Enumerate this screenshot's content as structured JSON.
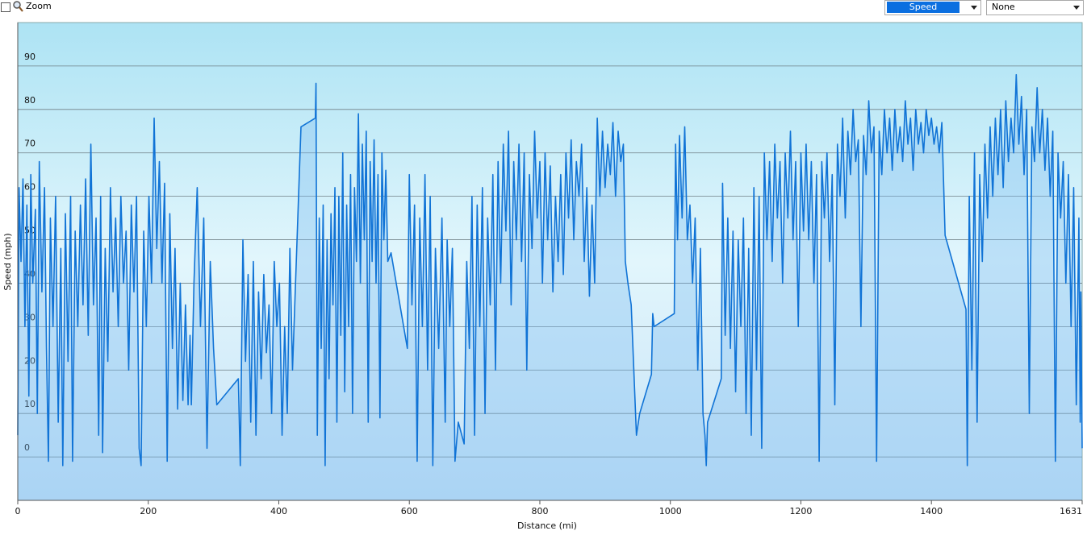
{
  "ui": {
    "zoom_label": "Zoom",
    "dropdown_metric": "Speed",
    "dropdown_overlay": "None"
  },
  "chart_data": {
    "type": "area",
    "x_label": "Distance  (mi)",
    "y_label": "Speed (mph)",
    "color": "#1073d6",
    "fill_color": "rgba(120,185,240,0.35)",
    "xlim": [
      0,
      1631
    ],
    "xticks": [
      0,
      200,
      400,
      600,
      800,
      1000,
      1200,
      1400,
      1631
    ],
    "ylim": [
      -10,
      100
    ],
    "yticks": [
      0,
      10,
      20,
      30,
      40,
      50,
      60,
      70,
      80,
      90
    ],
    "grid": true,
    "x": [
      0,
      2,
      5,
      8,
      11,
      14,
      17,
      20,
      23,
      27,
      30,
      33,
      37,
      41,
      44,
      47,
      50,
      54,
      58,
      62,
      66,
      69,
      73,
      77,
      81,
      84,
      88,
      92,
      96,
      100,
      104,
      108,
      112,
      116,
      120,
      124,
      127,
      130,
      134,
      138,
      142,
      146,
      150,
      154,
      158,
      162,
      166,
      170,
      174,
      178,
      182,
      186,
      189,
      193,
      197,
      201,
      205,
      209,
      213,
      217,
      221,
      225,
      229,
      233,
      237,
      241,
      245,
      249,
      253,
      257,
      261,
      264,
      266,
      270,
      275,
      280,
      285,
      290,
      295,
      300,
      305,
      338,
      341,
      345,
      349,
      353,
      357,
      361,
      365,
      369,
      373,
      377,
      381,
      385,
      389,
      393,
      397,
      401,
      405,
      409,
      413,
      417,
      421,
      434,
      456,
      457,
      459,
      462,
      465,
      468,
      471,
      474,
      477,
      480,
      483,
      486,
      489,
      492,
      495,
      498,
      501,
      504,
      507,
      510,
      513,
      516,
      519,
      522,
      525,
      528,
      531,
      534,
      537,
      540,
      543,
      546,
      549,
      552,
      555,
      558,
      561,
      564,
      567,
      572,
      597,
      600,
      604,
      608,
      612,
      616,
      620,
      624,
      628,
      632,
      636,
      640,
      645,
      650,
      655,
      658,
      662,
      666,
      670,
      675,
      684,
      688,
      692,
      696,
      700,
      704,
      708,
      712,
      716,
      720,
      724,
      728,
      732,
      736,
      740,
      744,
      748,
      752,
      756,
      760,
      764,
      768,
      772,
      776,
      780,
      784,
      788,
      792,
      796,
      800,
      804,
      808,
      812,
      816,
      820,
      824,
      828,
      832,
      836,
      840,
      844,
      848,
      852,
      856,
      860,
      864,
      868,
      872,
      876,
      880,
      884,
      888,
      892,
      896,
      900,
      904,
      908,
      912,
      916,
      920,
      924,
      928,
      931,
      935,
      940,
      944,
      948,
      953,
      971,
      973,
      975,
      1006,
      1008,
      1011,
      1014,
      1018,
      1022,
      1026,
      1030,
      1034,
      1038,
      1042,
      1046,
      1050,
      1053,
      1055,
      1057,
      1078,
      1080,
      1084,
      1088,
      1092,
      1096,
      1100,
      1104,
      1108,
      1112,
      1116,
      1120,
      1124,
      1128,
      1132,
      1136,
      1140,
      1144,
      1148,
      1152,
      1156,
      1160,
      1164,
      1168,
      1172,
      1176,
      1180,
      1184,
      1188,
      1192,
      1196,
      1200,
      1204,
      1208,
      1212,
      1216,
      1220,
      1224,
      1228,
      1232,
      1236,
      1240,
      1244,
      1248,
      1252,
      1256,
      1260,
      1264,
      1268,
      1272,
      1276,
      1280,
      1284,
      1288,
      1292,
      1296,
      1300,
      1304,
      1308,
      1312,
      1316,
      1320,
      1324,
      1328,
      1332,
      1336,
      1340,
      1344,
      1348,
      1352,
      1356,
      1360,
      1364,
      1368,
      1372,
      1376,
      1380,
      1384,
      1388,
      1392,
      1396,
      1400,
      1404,
      1408,
      1412,
      1416,
      1421,
      1453,
      1455,
      1458,
      1462,
      1466,
      1470,
      1474,
      1478,
      1482,
      1486,
      1490,
      1494,
      1498,
      1502,
      1506,
      1510,
      1514,
      1518,
      1522,
      1526,
      1530,
      1534,
      1538,
      1542,
      1546,
      1550,
      1554,
      1558,
      1562,
      1566,
      1570,
      1574,
      1578,
      1582,
      1586,
      1590,
      1594,
      1598,
      1602,
      1606,
      1610,
      1614,
      1618,
      1622,
      1626,
      1628,
      1629,
      1631
    ],
    "values": [
      5,
      62,
      45,
      64,
      30,
      58,
      14,
      65,
      40,
      57,
      10,
      68,
      38,
      62,
      25,
      -1,
      55,
      30,
      60,
      8,
      48,
      -2,
      56,
      22,
      60,
      -1,
      52,
      30,
      58,
      35,
      64,
      28,
      72,
      35,
      55,
      5,
      60,
      1,
      48,
      22,
      62,
      38,
      55,
      30,
      60,
      40,
      52,
      20,
      58,
      38,
      60,
      2,
      -2,
      52,
      30,
      60,
      40,
      78,
      48,
      68,
      40,
      63,
      -1,
      56,
      25,
      48,
      11,
      40,
      13,
      35,
      12,
      28,
      12,
      40,
      62,
      30,
      55,
      2,
      45,
      25,
      12,
      18,
      -2,
      50,
      22,
      42,
      8,
      45,
      5,
      38,
      18,
      42,
      24,
      35,
      10,
      45,
      30,
      40,
      5,
      30,
      10,
      48,
      20,
      76,
      78,
      86,
      5,
      55,
      25,
      58,
      -2,
      50,
      18,
      56,
      35,
      62,
      8,
      60,
      28,
      70,
      15,
      58,
      30,
      65,
      10,
      62,
      45,
      79,
      40,
      72,
      50,
      75,
      8,
      68,
      45,
      73,
      40,
      65,
      9,
      70,
      50,
      66,
      45,
      47,
      25,
      65,
      35,
      58,
      -1,
      55,
      30,
      65,
      20,
      60,
      -2,
      48,
      25,
      55,
      8,
      50,
      30,
      48,
      -1,
      8,
      3,
      45,
      25,
      60,
      5,
      58,
      30,
      62,
      10,
      55,
      35,
      65,
      20,
      68,
      40,
      72,
      52,
      75,
      35,
      68,
      50,
      72,
      45,
      70,
      20,
      65,
      48,
      75,
      55,
      68,
      40,
      70,
      50,
      67,
      38,
      60,
      45,
      65,
      42,
      70,
      55,
      73,
      50,
      68,
      60,
      72,
      45,
      62,
      37,
      58,
      40,
      78,
      60,
      75,
      62,
      72,
      65,
      77,
      60,
      75,
      68,
      72,
      45,
      40,
      35,
      20,
      5,
      10,
      19,
      33,
      30,
      33,
      72,
      50,
      74,
      55,
      76,
      50,
      58,
      40,
      55,
      20,
      48,
      10,
      5,
      -2,
      8,
      18,
      63,
      28,
      55,
      25,
      52,
      15,
      50,
      30,
      55,
      10,
      48,
      5,
      62,
      20,
      60,
      2,
      70,
      50,
      68,
      45,
      72,
      55,
      68,
      40,
      70,
      55,
      75,
      50,
      68,
      30,
      70,
      52,
      72,
      50,
      68,
      40,
      65,
      -1,
      68,
      55,
      70,
      45,
      65,
      12,
      72,
      60,
      78,
      55,
      75,
      65,
      80,
      68,
      73,
      30,
      74,
      65,
      82,
      70,
      76,
      -1,
      75,
      65,
      80,
      70,
      78,
      66,
      80,
      70,
      76,
      68,
      82,
      72,
      78,
      66,
      80,
      72,
      77,
      70,
      80,
      74,
      78,
      72,
      76,
      70,
      77,
      51,
      34,
      -2,
      60,
      20,
      70,
      8,
      65,
      45,
      72,
      55,
      76,
      60,
      78,
      65,
      80,
      62,
      82,
      68,
      78,
      70,
      88,
      72,
      83,
      65,
      80,
      10,
      76,
      68,
      85,
      70,
      80,
      66,
      78,
      60,
      75,
      -1,
      70,
      55,
      68,
      40,
      65,
      30,
      62,
      12,
      55,
      8,
      38,
      2
    ]
  }
}
